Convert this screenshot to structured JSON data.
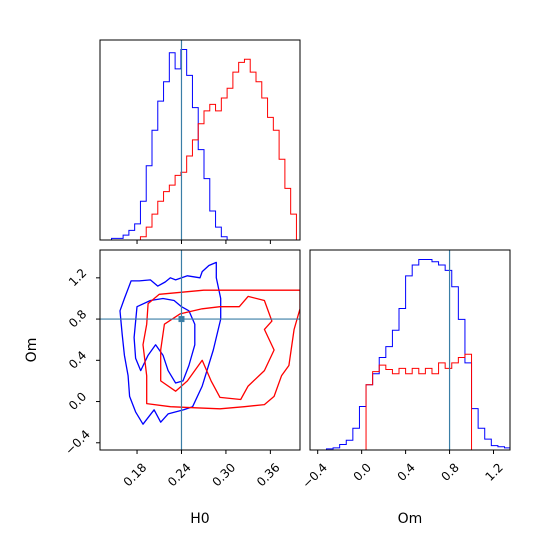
{
  "colors": {
    "series_a": "#0000ff",
    "series_b": "#ff0000",
    "truth": "#3a7ea6"
  },
  "chart_data": {
    "type": "corner",
    "parameters": [
      "H0",
      "Om"
    ],
    "truth": {
      "H0": 0.24,
      "Om": 0.8
    },
    "panels": {
      "h0_hist": {
        "type": "histogram",
        "xlim": [
          0.13,
          0.4
        ],
        "ytick_labels_visible": false,
        "bin_edges": [
          0.13,
          0.1378,
          0.1456,
          0.1534,
          0.1612,
          0.169,
          0.1768,
          0.1846,
          0.1924,
          0.2002,
          0.208,
          0.2158,
          0.2236,
          0.2314,
          0.2392,
          0.247,
          0.2548,
          0.2626,
          0.2704,
          0.2782,
          0.286,
          0.2938,
          0.3016,
          0.3094,
          0.3172,
          0.325,
          0.3328,
          0.3406,
          0.3484,
          0.3562,
          0.364,
          0.3718,
          0.3796,
          0.3874,
          0.3952
        ],
        "series": [
          {
            "color": "blue",
            "counts": [
              0,
              0,
              0.5,
              0.5,
              1.5,
              3,
              5,
              12,
              23,
              34,
              43,
              49,
              58,
              53,
              59,
              51,
              41,
              28,
              19,
              9,
              4,
              1,
              0,
              0,
              0,
              0,
              0,
              0,
              0,
              0,
              0,
              0,
              0,
              0
            ]
          },
          {
            "color": "red",
            "counts": [
              0,
              0,
              0,
              0,
              0,
              0,
              0,
              1,
              4,
              8,
              12,
              15,
              17,
              20,
              21,
              26,
              31,
              36,
              40,
              42,
              40,
              44,
              47,
              52,
              55,
              56,
              52,
              49,
              44,
              38,
              34,
              25,
              16,
              8
            ]
          }
        ]
      },
      "om_vs_h0_contour": {
        "type": "contour",
        "xlabel": "H0",
        "ylabel": "Om",
        "xlim": [
          0.13,
          0.4
        ],
        "ylim": [
          -0.47,
          1.47
        ],
        "xticks": [
          "0.18",
          "0.24",
          "0.30",
          "0.36"
        ],
        "yticks": [
          "−0.4",
          "0.0",
          "0.4",
          "0.8",
          "1.2"
        ],
        "contours": [
          {
            "color": "blue",
            "level": "outer",
            "path": [
              [
                0.157,
                0.88
              ],
              [
                0.163,
                1.0
              ],
              [
                0.172,
                1.17
              ],
              [
                0.183,
                1.17
              ],
              [
                0.198,
                1.18
              ],
              [
                0.208,
                1.12
              ],
              [
                0.218,
                1.16
              ],
              [
                0.225,
                1.2
              ],
              [
                0.232,
                1.18
              ],
              [
                0.248,
                1.22
              ],
              [
                0.265,
                1.2
              ],
              [
                0.268,
                1.26
              ],
              [
                0.277,
                1.32
              ],
              [
                0.287,
                1.35
              ],
              [
                0.287,
                1.2
              ],
              [
                0.293,
                1.0
              ],
              [
                0.293,
                0.8
              ],
              [
                0.283,
                0.5
              ],
              [
                0.268,
                0.15
              ],
              [
                0.255,
                -0.05
              ],
              [
                0.243,
                -0.08
              ],
              [
                0.222,
                -0.12
              ],
              [
                0.212,
                -0.2
              ],
              [
                0.203,
                -0.08
              ],
              [
                0.188,
                -0.22
              ],
              [
                0.178,
                -0.1
              ],
              [
                0.17,
                0.05
              ],
              [
                0.168,
                0.25
              ],
              [
                0.163,
                0.45
              ],
              [
                0.16,
                0.65
              ],
              [
                0.157,
                0.88
              ]
            ]
          },
          {
            "color": "blue",
            "level": "inner",
            "path": [
              [
                0.18,
                0.92
              ],
              [
                0.198,
                0.98
              ],
              [
                0.215,
                1.0
              ],
              [
                0.23,
                0.98
              ],
              [
                0.24,
                0.92
              ],
              [
                0.25,
                0.88
              ],
              [
                0.258,
                0.75
              ],
              [
                0.258,
                0.55
              ],
              [
                0.25,
                0.35
              ],
              [
                0.242,
                0.2
              ],
              [
                0.232,
                0.18
              ],
              [
                0.222,
                0.3
              ],
              [
                0.215,
                0.45
              ],
              [
                0.205,
                0.55
              ],
              [
                0.195,
                0.45
              ],
              [
                0.185,
                0.3
              ],
              [
                0.178,
                0.42
              ],
              [
                0.176,
                0.62
              ],
              [
                0.18,
                0.92
              ]
            ]
          },
          {
            "color": "red",
            "level": "outer",
            "path": [
              [
                0.193,
                -0.02
              ],
              [
                0.193,
                0.25
              ],
              [
                0.188,
                0.55
              ],
              [
                0.193,
                0.75
              ],
              [
                0.195,
                0.95
              ],
              [
                0.21,
                1.04
              ],
              [
                0.27,
                1.08
              ],
              [
                0.4,
                1.08
              ],
              [
                0.4,
                0.9
              ],
              [
                0.392,
                0.7
              ],
              [
                0.385,
                0.35
              ],
              [
                0.375,
                0.25
              ],
              [
                0.365,
                0.05
              ],
              [
                0.352,
                -0.03
              ],
              [
                0.325,
                -0.05
              ],
              [
                0.292,
                -0.07
              ],
              [
                0.255,
                -0.06
              ],
              [
                0.225,
                -0.05
              ],
              [
                0.193,
                -0.02
              ]
            ]
          },
          {
            "color": "red",
            "level": "inner",
            "path": [
              [
                0.212,
                0.2
              ],
              [
                0.212,
                0.5
              ],
              [
                0.217,
                0.75
              ],
              [
                0.238,
                0.85
              ],
              [
                0.268,
                0.9
              ],
              [
                0.292,
                0.92
              ],
              [
                0.318,
                0.92
              ],
              [
                0.33,
                1.02
              ],
              [
                0.352,
                0.98
              ],
              [
                0.362,
                0.78
              ],
              [
                0.352,
                0.7
              ],
              [
                0.365,
                0.5
              ],
              [
                0.352,
                0.3
              ],
              [
                0.33,
                0.15
              ],
              [
                0.32,
                0.02
              ],
              [
                0.292,
                0.04
              ],
              [
                0.28,
                0.2
              ],
              [
                0.268,
                0.4
              ],
              [
                0.248,
                0.2
              ],
              [
                0.232,
                0.1
              ],
              [
                0.212,
                0.2
              ]
            ]
          }
        ]
      },
      "om_hist": {
        "type": "histogram",
        "xlim": [
          -0.47,
          1.35
        ],
        "xlabel": "Om",
        "xticks": [
          "−0.4",
          "0.0",
          "0.4",
          "0.8",
          "1.2"
        ],
        "bin_edges": [
          -0.5,
          -0.44,
          -0.38,
          -0.32,
          -0.26,
          -0.2,
          -0.14,
          -0.08,
          -0.02,
          0.04,
          0.1,
          0.16,
          0.22,
          0.28,
          0.34,
          0.4,
          0.46,
          0.52,
          0.58,
          0.64,
          0.7,
          0.76,
          0.82,
          0.88,
          0.94,
          1.0,
          1.06,
          1.12,
          1.18,
          1.24,
          1.3,
          1.36
        ],
        "series": [
          {
            "color": "blue",
            "counts": [
              0,
              0,
              0,
              1,
              2,
              5,
              9,
              20,
              40,
              60,
              70,
              85,
              95,
              110,
              130,
              160,
              170,
              175,
              175,
              173,
              170,
              165,
              150,
              120,
              80,
              38,
              20,
              10,
              4,
              3,
              2
            ]
          },
          {
            "color": "red",
            "counts": [
              0,
              0,
              0,
              0,
              0,
              0,
              0,
              0,
              0,
              60,
              72,
              78,
              74,
              70,
              75,
              70,
              75,
              70,
              75,
              70,
              80,
              75,
              80,
              85,
              88,
              0,
              0,
              0,
              0,
              0,
              0
            ]
          }
        ]
      }
    }
  }
}
